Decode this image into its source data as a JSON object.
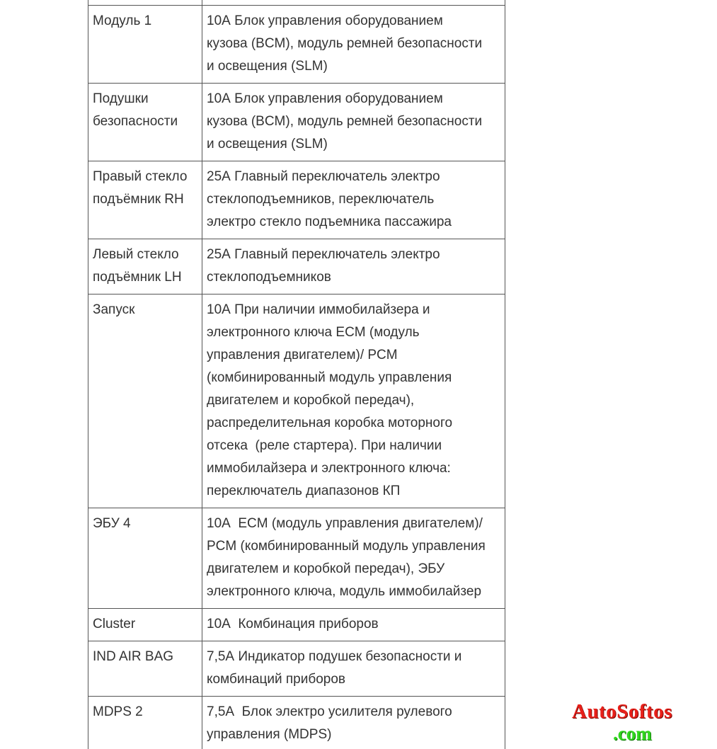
{
  "table": {
    "rows": [
      [
        [
          "Модуль 1"
        ],
        [
          "10А Блок управления оборудованием",
          "кузова (BCM), модуль ремней безопасности",
          "и освещения (SLM)"
        ]
      ],
      [
        [
          "Подушки",
          "безопасности"
        ],
        [
          "10А Блок управления оборудованием",
          "кузова (BCM), модуль ремней безопасности",
          "и освещения (SLM)"
        ]
      ],
      [
        [
          "Правый стекло",
          "подъёмник RH"
        ],
        [
          "25А Главный переключатель электро",
          "стеклоподъемников, переключатель",
          "электро стекло подъемника пассажира"
        ]
      ],
      [
        [
          "Левый стекло",
          "подъёмник LH"
        ],
        [
          "25А Главный переключатель электро",
          "стеклоподъемников"
        ]
      ],
      [
        [
          "Запуск"
        ],
        [
          "10А При наличии иммобилайзера и",
          "электронного ключа ECM (модуль",
          "управления двигателем)/ PCM",
          "(комбинированный модуль управления",
          "двигателем и коробкой передач),",
          "распределительная коробка моторного",
          "отсека  (реле стартера). При наличии",
          "иммобилайзера и электронного ключа:",
          "переключатель диапазонов КП"
        ]
      ],
      [
        [
          "ЭБУ 4"
        ],
        [
          "10А  ECM (модуль управления двигателем)/",
          "PCM (комбинированный модуль управления",
          "двигателем и коробкой передач), ЭБУ",
          "электронного ключа, модуль иммобилайзер"
        ]
      ],
      [
        [
          "Cluster"
        ],
        [
          "10А  Комбинация приборов"
        ]
      ],
      [
        [
          "IND AIR BAG"
        ],
        [
          "7,5А Индикатор подушек безопасности и",
          "комбинаций приборов"
        ]
      ],
      [
        [
          "MDPS 2"
        ],
        [
          "7,5А  Блок электро усилителя рулевого",
          "управления (MDPS)"
        ]
      ]
    ]
  },
  "watermark": {
    "brand": "AutoSoftos",
    "domain": ".com"
  }
}
